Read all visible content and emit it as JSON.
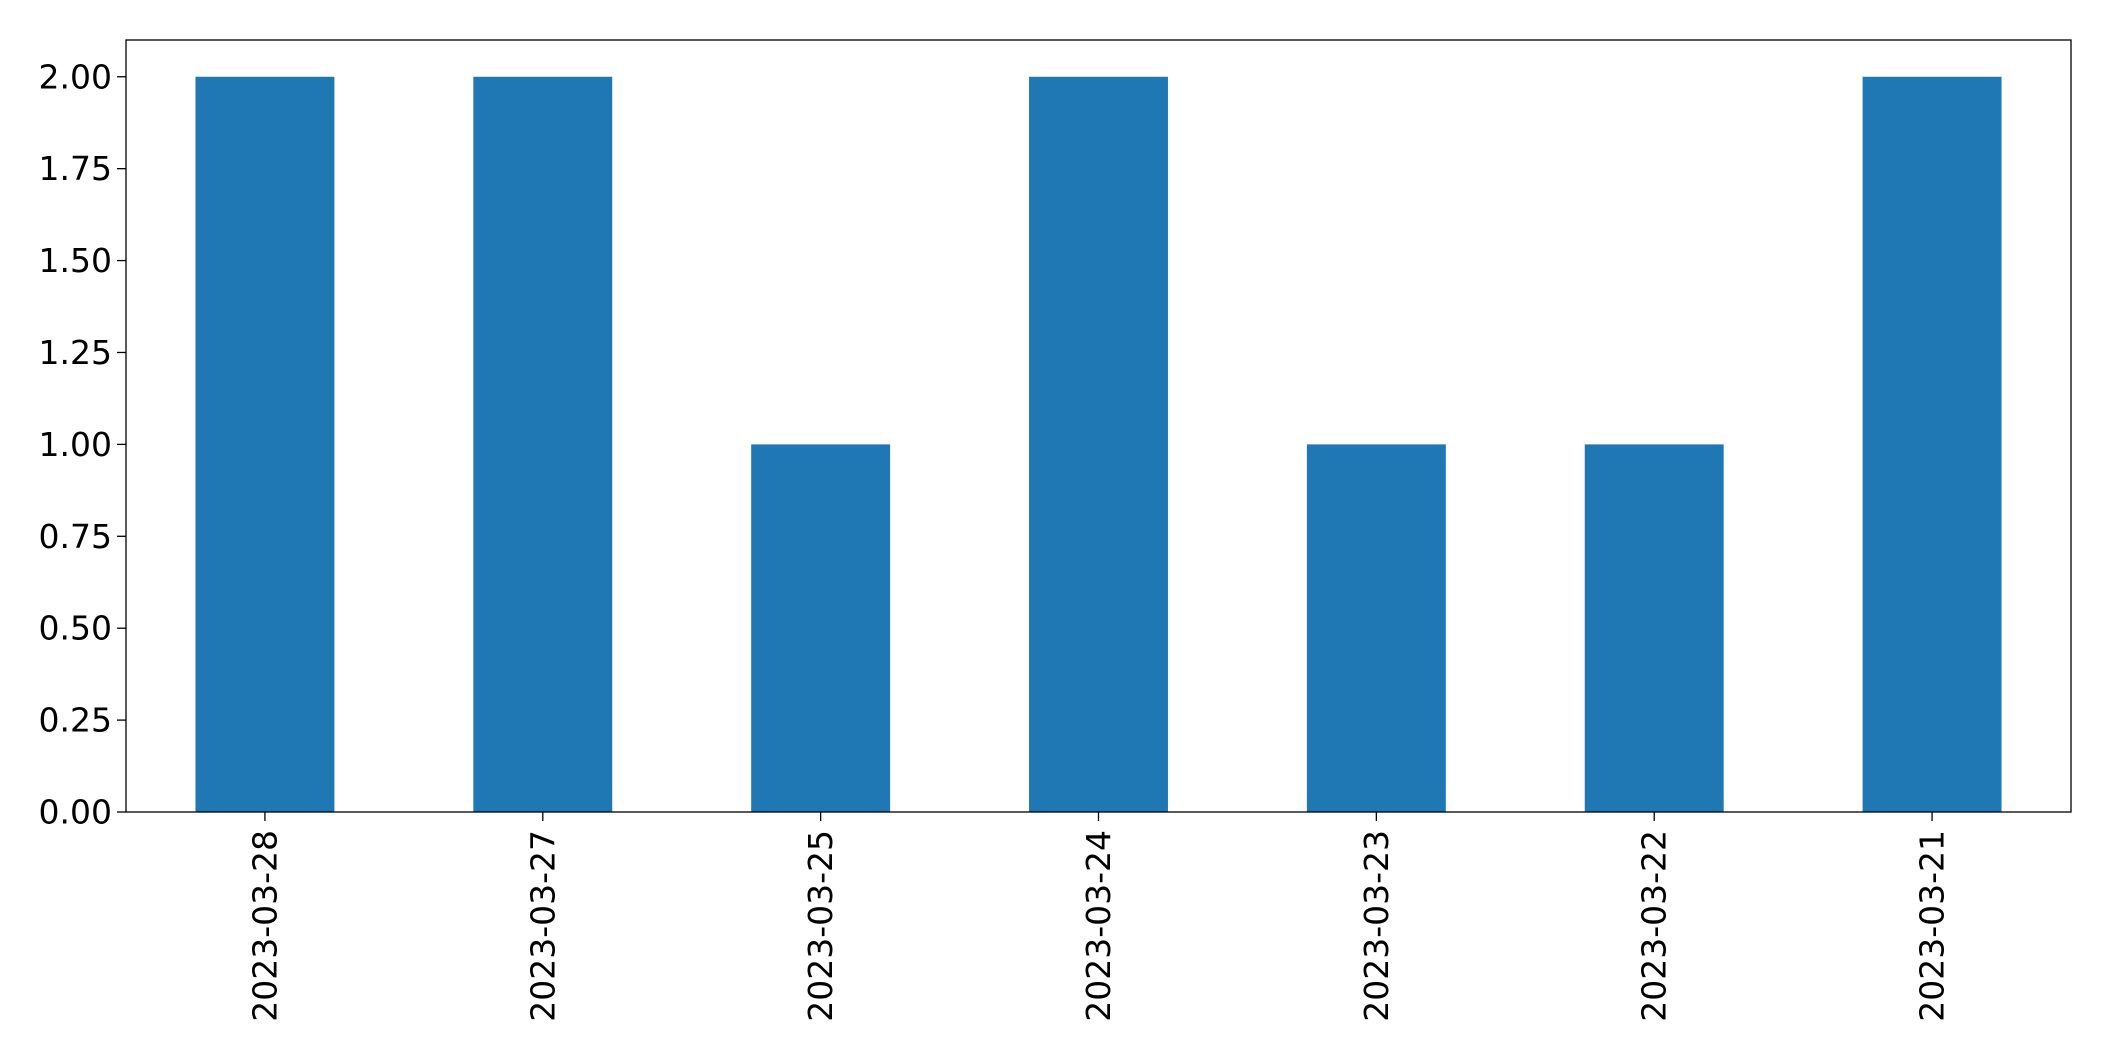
{
  "chart_data": {
    "type": "bar",
    "categories": [
      "2023-03-28",
      "2023-03-27",
      "2023-03-25",
      "2023-03-24",
      "2023-03-23",
      "2023-03-22",
      "2023-03-21"
    ],
    "values": [
      2,
      2,
      1,
      2,
      1,
      1,
      2
    ],
    "title": "",
    "xlabel": "",
    "ylabel": "",
    "ylim": [
      0,
      2.1
    ],
    "yticks": [
      "0.00",
      "0.25",
      "0.50",
      "0.75",
      "1.00",
      "1.25",
      "1.50",
      "1.75",
      "2.00"
    ],
    "grid": false,
    "legend": "none",
    "bar_color": "#1f77b4"
  }
}
